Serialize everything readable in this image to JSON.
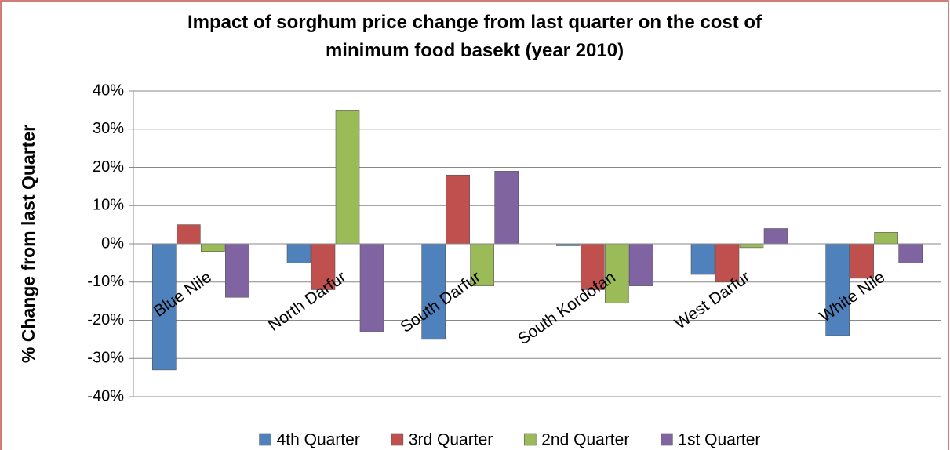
{
  "chart_data": {
    "type": "bar",
    "title": "Impact of sorghum price change from last quarter on the cost of minimum food basekt (year 2010)",
    "y_label": "% Change from last Quarter",
    "categories": [
      "Blue Nile",
      "North Darfur",
      "South Darfur",
      "South Kordofan",
      "West Darfur",
      "White Nile"
    ],
    "series": [
      {
        "name": "4th Quarter",
        "color": "#4f81bd",
        "values": [
          -33,
          -5,
          -25,
          -0.5,
          -8,
          -24
        ]
      },
      {
        "name": "3rd Quarter",
        "color": "#c0504d",
        "values": [
          5,
          -12,
          18,
          -12,
          -10,
          -9
        ]
      },
      {
        "name": "2nd Quarter",
        "color": "#9bbb59",
        "values": [
          -2,
          35,
          -11,
          -15.5,
          -1,
          3
        ]
      },
      {
        "name": "1st Quarter",
        "color": "#8064a2",
        "values": [
          -14,
          -23,
          19,
          -11,
          4,
          -5
        ]
      }
    ],
    "ylim": [
      -40,
      40
    ],
    "yticks": [
      {
        "value": -40,
        "label": "-40%"
      },
      {
        "value": -30,
        "label": "-30%"
      },
      {
        "value": -20,
        "label": "-20%"
      },
      {
        "value": -10,
        "label": "-10%"
      },
      {
        "value": 0,
        "label": "0%"
      },
      {
        "value": 10,
        "label": "10%"
      },
      {
        "value": 20,
        "label": "20%"
      },
      {
        "value": 30,
        "label": "30%"
      },
      {
        "value": 40,
        "label": "40%"
      }
    ],
    "grid": true,
    "legend": "bottom"
  }
}
